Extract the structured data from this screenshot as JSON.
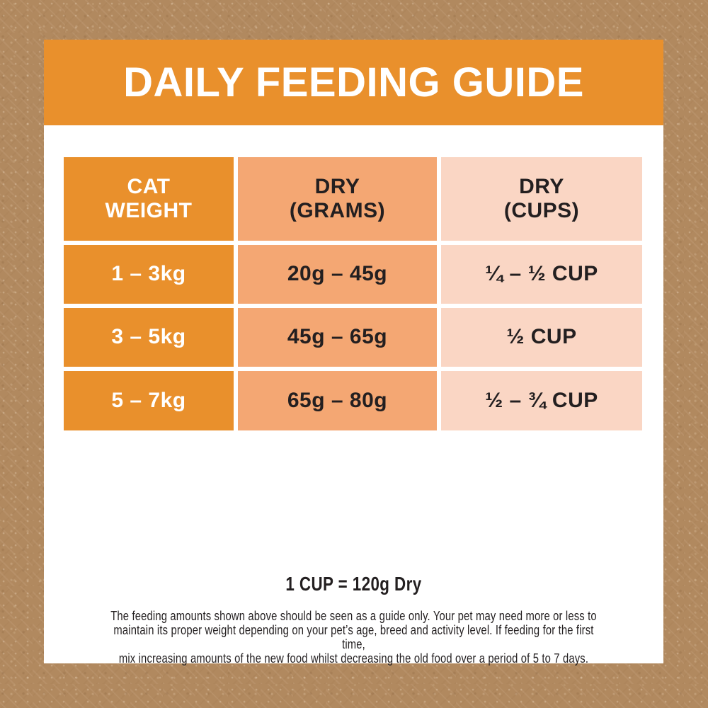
{
  "banner": {
    "title": "DAILY FEEDING GUIDE"
  },
  "colors": {
    "banner_orange": "#e9902c",
    "weight_column_orange": "#e9902c",
    "grams_column_orange": "#f4a773",
    "cups_column_peach": "#fad6c4",
    "background_brown": "#b1895f",
    "panel_white": "#ffffff",
    "text_dark": "#231f20",
    "text_white": "#ffffff"
  },
  "table": {
    "headers": [
      {
        "label": "CAT\nWEIGHT"
      },
      {
        "label": "DRY\n(GRAMS)"
      },
      {
        "label": "DRY\n(CUPS)"
      }
    ],
    "rows": [
      {
        "weight": "1 – 3kg",
        "dry_grams": "20g – 45g",
        "dry_cups": "¼ – ½ CUP"
      },
      {
        "weight": "3 – 5kg",
        "dry_grams": "45g – 65g",
        "dry_cups": "½ CUP"
      },
      {
        "weight": "5 – 7kg",
        "dry_grams": "65g – 80g",
        "dry_cups": "½ – ¾ CUP"
      }
    ]
  },
  "footer": {
    "cup_equivalence": "1 CUP = 120g Dry",
    "disclaimer": "The feeding amounts shown above should be seen as a guide only. Your pet may need more or less to\nmaintain its proper weight depending on your pet’s age, breed and activity level. If feeding for the first time,\nmix increasing amounts of the new food whilst decreasing the old food over a period of 5 to 7 days."
  },
  "chart_data": {
    "type": "table",
    "title": "DAILY FEEDING GUIDE",
    "columns": [
      "CAT WEIGHT",
      "DRY (GRAMS)",
      "DRY (CUPS)"
    ],
    "rows": [
      [
        "1 – 3kg",
        "20g – 45g",
        "¼ – ½ CUP"
      ],
      [
        "3 – 5kg",
        "45g – 65g",
        "½ CUP"
      ],
      [
        "5 – 7kg",
        "65g – 80g",
        "½ – ¾ CUP"
      ]
    ],
    "note": "1 CUP = 120g Dry"
  }
}
